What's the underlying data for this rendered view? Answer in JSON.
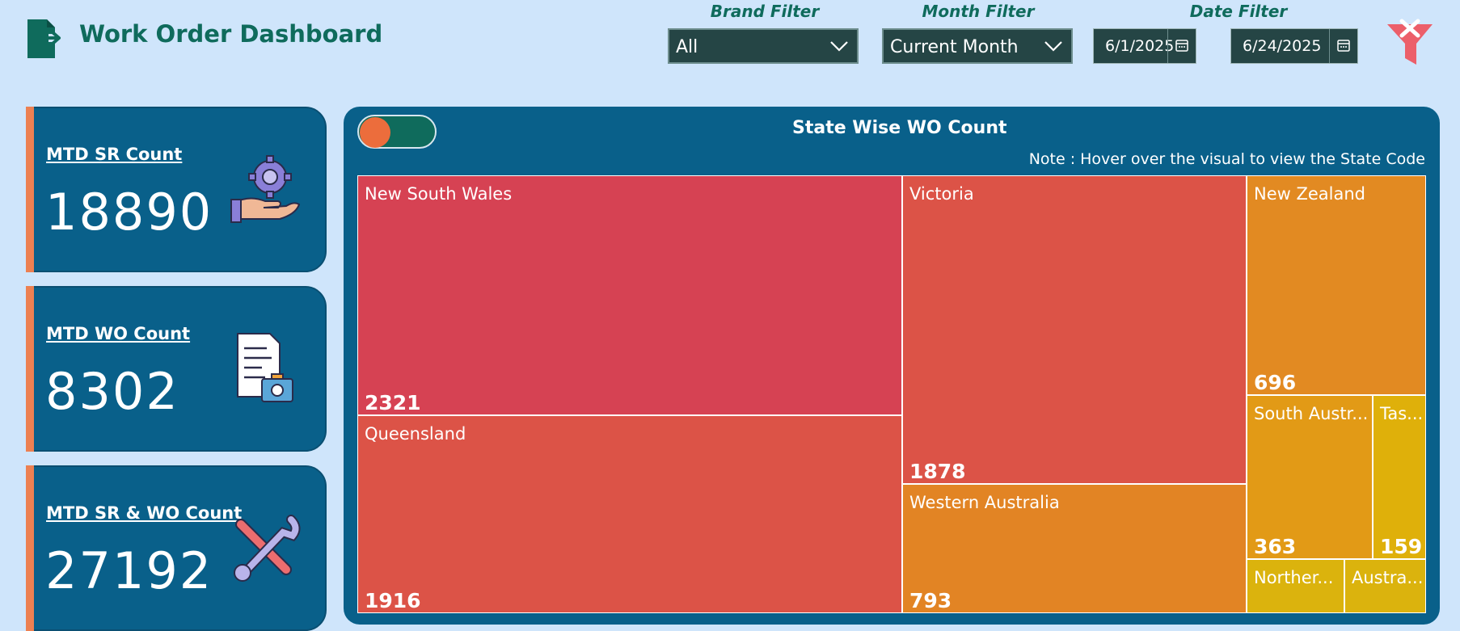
{
  "header": {
    "title": "Work Order Dashboard",
    "app_icon": "exit-document-icon"
  },
  "filters": {
    "brand": {
      "label": "Brand Filter",
      "value": "All"
    },
    "month": {
      "label": "Month Filter",
      "value": "Current Month"
    },
    "date": {
      "label": "Date Filter",
      "start": "6/1/2025",
      "end": "6/24/2025"
    },
    "clear_icon": "clear-filter-icon"
  },
  "kpis": [
    {
      "label": "MTD SR Count",
      "value": "18890",
      "icon": "gear-hand-icon"
    },
    {
      "label": "MTD WO Count",
      "value": "8302",
      "icon": "checklist-toolbox-icon"
    },
    {
      "label": "MTD SR & WO Count",
      "value": "27192",
      "icon": "tools-icon"
    }
  ],
  "chart_panel": {
    "title": "State Wise WO Count",
    "note": "Note : Hover over the visual to view the State Code"
  },
  "chart_data": {
    "type": "treemap",
    "title": "State Wise WO Count",
    "items": [
      {
        "label": "New South Wales",
        "value": 2321,
        "color": "#d64253"
      },
      {
        "label": "Queensland",
        "value": 1916,
        "color": "#dc5347"
      },
      {
        "label": "Victoria",
        "value": 1878,
        "color": "#dc5347"
      },
      {
        "label": "Western Australia",
        "value": 793,
        "color": "#e28424"
      },
      {
        "label": "New Zealand",
        "value": 696,
        "color": "#e28a22"
      },
      {
        "label": "South Austr...",
        "value": 363,
        "color": "#e29a16"
      },
      {
        "label": "Tas...",
        "value": 159,
        "color": "#dfb00a"
      },
      {
        "label": "Norther...",
        "value": null,
        "color": "#dbb30d"
      },
      {
        "label": "Austra...",
        "value": null,
        "color": "#dbb30d"
      }
    ]
  },
  "colors": {
    "background": "#cfe5fb",
    "card": "#09608a",
    "accent": "#ec8052",
    "title_green": "#0f6b5c"
  }
}
